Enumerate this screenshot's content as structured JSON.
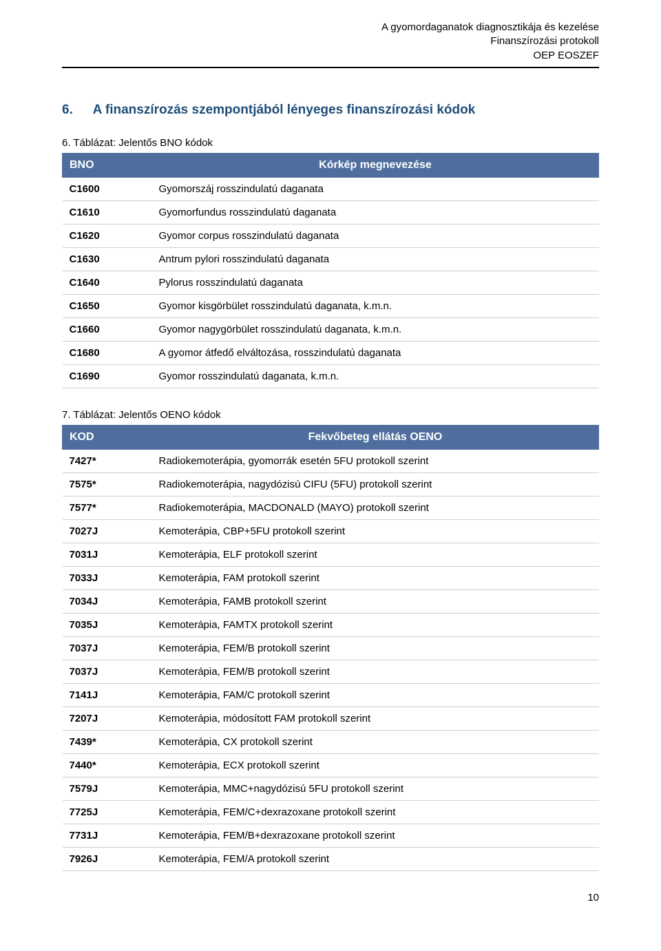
{
  "header": {
    "line1": "A gyomordaganatok diagnosztikája és kezelése",
    "line2": "Finanszírozási protokoll",
    "line3": "OEP EOSZEF"
  },
  "section": {
    "number": "6.",
    "title": "A finanszírozás szempontjából lényeges finanszírozási kódok"
  },
  "table1": {
    "caption": "6. Táblázat: Jelentős BNO kódok",
    "columns": {
      "code": "BNO",
      "desc": "Kórkép megnevezése"
    },
    "rows": [
      {
        "code": "C1600",
        "desc": "Gyomorszáj rosszindulatú daganata"
      },
      {
        "code": "C1610",
        "desc": "Gyomorfundus rosszindulatú daganata"
      },
      {
        "code": "C1620",
        "desc": "Gyomor corpus rosszindulatú daganata"
      },
      {
        "code": "C1630",
        "desc": "Antrum pylori rosszindulatú daganata"
      },
      {
        "code": "C1640",
        "desc": "Pylorus rosszindulatú daganata"
      },
      {
        "code": "C1650",
        "desc": "Gyomor kisgörbület rosszindulatú daganata, k.m.n."
      },
      {
        "code": "C1660",
        "desc": "Gyomor nagygörbület rosszindulatú daganata, k.m.n."
      },
      {
        "code": "C1680",
        "desc": "A gyomor átfedő elváltozása, rosszindulatú daganata"
      },
      {
        "code": "C1690",
        "desc": "Gyomor rosszindulatú daganata, k.m.n."
      }
    ]
  },
  "table2": {
    "caption": "7. Táblázat: Jelentős OENO kódok",
    "columns": {
      "code": "KOD",
      "desc": "Fekvőbeteg ellátás OENO"
    },
    "rows": [
      {
        "code": "7427*",
        "desc": "Radiokemoterápia, gyomorrák esetén 5FU protokoll szerint"
      },
      {
        "code": "7575*",
        "desc": "Radiokemoterápia, nagydózisú CIFU (5FU) protokoll szerint"
      },
      {
        "code": "7577*",
        "desc": "Radiokemoterápia, MACDONALD (MAYO) protokoll szerint"
      },
      {
        "code": "7027J",
        "desc": "Kemoterápia, CBP+5FU protokoll szerint"
      },
      {
        "code": "7031J",
        "desc": "Kemoterápia, ELF protokoll szerint"
      },
      {
        "code": "7033J",
        "desc": "Kemoterápia, FAM protokoll szerint"
      },
      {
        "code": "7034J",
        "desc": "Kemoterápia, FAMB protokoll szerint"
      },
      {
        "code": "7035J",
        "desc": "Kemoterápia, FAMTX protokoll szerint"
      },
      {
        "code": "7037J",
        "desc": "Kemoterápia, FEM/B protokoll szerint"
      },
      {
        "code": "7037J",
        "desc": "Kemoterápia, FEM/B protokoll szerint"
      },
      {
        "code": "7141J",
        "desc": "Kemoterápia, FAM/C protokoll szerint"
      },
      {
        "code": "7207J",
        "desc": "Kemoterápia, módosított FAM protokoll szerint"
      },
      {
        "code": "7439*",
        "desc": "Kemoterápia, CX protokoll szerint"
      },
      {
        "code": "7440*",
        "desc": "Kemoterápia, ECX protokoll szerint"
      },
      {
        "code": "7579J",
        "desc": "Kemoterápia, MMC+nagydózisú 5FU protokoll szerint"
      },
      {
        "code": "7725J",
        "desc": "Kemoterápia, FEM/C+dexrazoxane protokoll szerint"
      },
      {
        "code": "7731J",
        "desc": "Kemoterápia, FEM/B+dexrazoxane protokoll szerint"
      },
      {
        "code": "7926J",
        "desc": "Kemoterápia, FEM/A protokoll szerint"
      }
    ]
  },
  "pageNumber": "10",
  "style": {
    "headerColor": "#000000",
    "sectionTitleColor": "#1f4e79",
    "tableHeaderBg": "#4f6e9e",
    "tableHeaderText": "#ffffff",
    "rowBorderColor": "#cfcfcf",
    "bodyFontFamily": "Arial, Helvetica, sans-serif"
  }
}
